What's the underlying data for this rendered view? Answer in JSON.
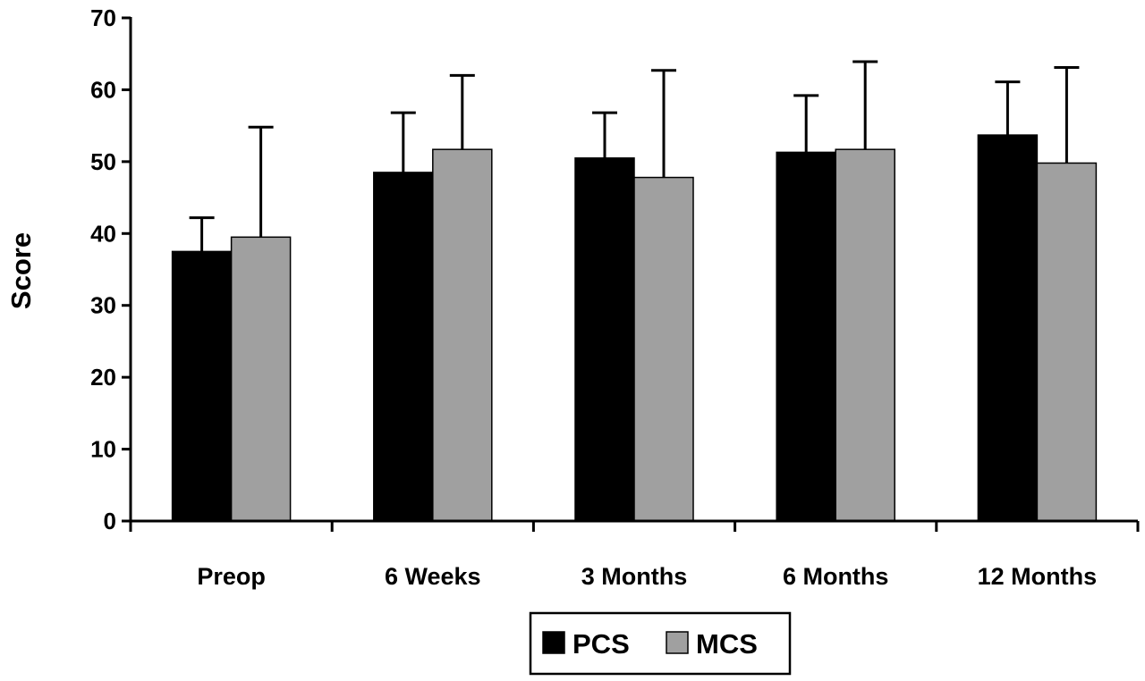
{
  "chart_data": {
    "type": "bar",
    "ylabel": "Score",
    "xlabel": "",
    "ylim": [
      0,
      70
    ],
    "yticks": [
      0,
      10,
      20,
      30,
      40,
      50,
      60,
      70
    ],
    "grid": false,
    "legend_position": "bottom",
    "categories": [
      "Preop",
      "6 Weeks",
      "3 Months",
      "6 Months",
      "12 Months"
    ],
    "series": [
      {
        "name": "PCS",
        "color": "#000000",
        "values": [
          37.5,
          48.5,
          50.5,
          51.3,
          53.7
        ],
        "error": [
          4.7,
          8.3,
          6.3,
          7.9,
          7.4
        ]
      },
      {
        "name": "MCS",
        "color": "#a0a0a0",
        "values": [
          39.5,
          51.7,
          47.8,
          51.7,
          49.8
        ],
        "error": [
          15.3,
          10.3,
          14.9,
          12.2,
          13.3
        ]
      }
    ]
  }
}
